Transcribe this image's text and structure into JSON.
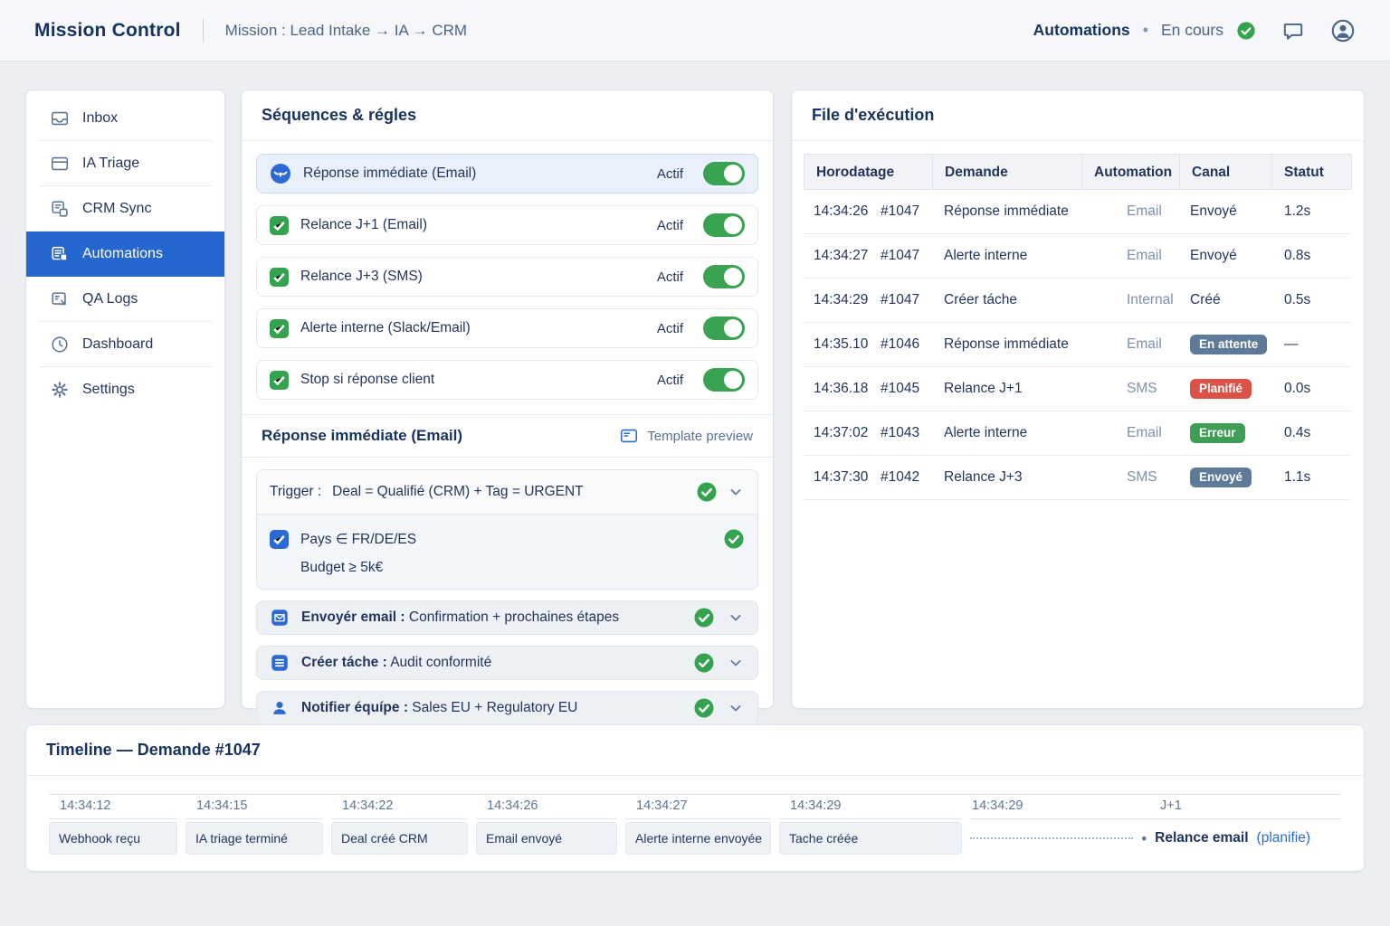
{
  "header": {
    "app_title": "Mission Control",
    "breadcrumb": "Mission : Lead Intake → IA → CRM",
    "status_section": "Automations",
    "status_dot": "•",
    "status_text": "En cours"
  },
  "sidebar": {
    "items": [
      {
        "label": "Inbox",
        "icon": "inbox-icon",
        "active": false
      },
      {
        "label": "IA Triage",
        "icon": "triage-icon",
        "active": false
      },
      {
        "label": "CRM Sync",
        "icon": "crm-sync-icon",
        "active": false
      },
      {
        "label": "Automations",
        "icon": "automations-icon",
        "active": true
      },
      {
        "label": "QA Logs",
        "icon": "qa-logs-icon",
        "active": false
      },
      {
        "label": "Dashboard",
        "icon": "dashboard-icon",
        "active": false
      },
      {
        "label": "Settings",
        "icon": "settings-icon",
        "active": false
      }
    ]
  },
  "sequences": {
    "title": "Séquences & régles",
    "rules": [
      {
        "label": "Réponse immédiate (Email)",
        "state": "Actif",
        "enabled": true,
        "highlighted": true,
        "icon": "bird-icon"
      },
      {
        "label": "Relance J+1 (Email)",
        "state": "Actif",
        "enabled": true,
        "highlighted": false,
        "icon": "checkbox"
      },
      {
        "label": "Relance J+3 (SMS)",
        "state": "Actif",
        "enabled": true,
        "highlighted": false,
        "icon": "checkbox"
      },
      {
        "label": "Alerte interne (Slack/Email)",
        "state": "Actif",
        "enabled": true,
        "highlighted": false,
        "icon": "checkbox"
      },
      {
        "label": "Stop si réponse client",
        "state": "Actif",
        "enabled": true,
        "highlighted": false,
        "icon": "checkbox"
      }
    ],
    "detail": {
      "title": "Réponse immédiate (Email)",
      "template_preview": "Template preview",
      "trigger_prefix": "Trigger :",
      "trigger_text": "Deal = Qualifié (CRM) + Tag = URGENT",
      "condition_main": "Pays ∈ FR/DE/ES",
      "condition_sub": "Budget ≥ 5k€",
      "actions": [
        {
          "prefix": "Envoyér email :",
          "text": "Confirmation + prochaines étapes",
          "icon": "email-icon"
        },
        {
          "prefix": "Créer táche :",
          "text": "Audit conformité",
          "icon": "task-icon"
        },
        {
          "prefix": "Notifier équípe :",
          "text": "Sales EU + Regulatory EU",
          "icon": "person-icon"
        }
      ]
    }
  },
  "queue": {
    "title": "File d'exécution",
    "columns": [
      "Horodatage",
      "Demande",
      "Automation",
      "Canal",
      "Statut"
    ],
    "rows": [
      {
        "time": "14:34:26",
        "demande": "#1047",
        "automation": "Réponse immédiate",
        "canal": "Email",
        "statut": "Envoyé",
        "statut_style": "text",
        "duree": "1.2s"
      },
      {
        "time": "14:34:27",
        "demande": "#1047",
        "automation": "Alerte interne",
        "canal": "Email",
        "statut": "Envoyé",
        "statut_style": "text",
        "duree": "0.8s"
      },
      {
        "time": "14:34:29",
        "demande": "#1047",
        "automation": "Créer táche",
        "canal": "Internal",
        "statut": "Créé",
        "statut_style": "text",
        "duree": "0.5s"
      },
      {
        "time": "14:35.10",
        "demande": "#1046",
        "automation": "Réponse immédiate",
        "canal": "Email",
        "statut": "En attente",
        "statut_style": "badge-slate",
        "duree": "—"
      },
      {
        "time": "14:36.18",
        "demande": "#1045",
        "automation": "Relance J+1",
        "canal": "SMS",
        "statut": "Planifié",
        "statut_style": "badge-red",
        "duree": "0.0s"
      },
      {
        "time": "14:37:02",
        "demande": "#1043",
        "automation": "Alerte interne",
        "canal": "Email",
        "statut": "Erreur",
        "statut_style": "badge-green",
        "duree": "0.4s"
      },
      {
        "time": "14:37:30",
        "demande": "#1042",
        "automation": "Relance J+3",
        "canal": "SMS",
        "statut": "Envoyé",
        "statut_style": "badge-slate",
        "duree": "1.1s"
      }
    ]
  },
  "timeline": {
    "title": "Timeline — Demande #1047",
    "events": [
      {
        "time": "14:34:12",
        "label": "Webhook reçu"
      },
      {
        "time": "14:34:15",
        "label": "IA triage terminé"
      },
      {
        "time": "14:34:22",
        "label": "Deal créé CRM"
      },
      {
        "time": "14:34:26",
        "label": "Email envoyé"
      },
      {
        "time": "14:34:27",
        "label": "Alerte interne envoyée"
      },
      {
        "time": "14:34:29",
        "label": "Tache créée"
      }
    ],
    "pending": {
      "time": "14:34:29",
      "day": "J+1",
      "bullet": "•",
      "main": "Relance email",
      "sub": "(planifie)"
    }
  },
  "colors": {
    "accent_blue": "#2a6ad2",
    "active_nav_blue": "#2566cf",
    "success_green": "#34a34e",
    "toggle_green": "#3aa352",
    "badge_slate": "#5d7a99",
    "badge_red": "#da5147",
    "badge_green": "#3f9e55"
  }
}
